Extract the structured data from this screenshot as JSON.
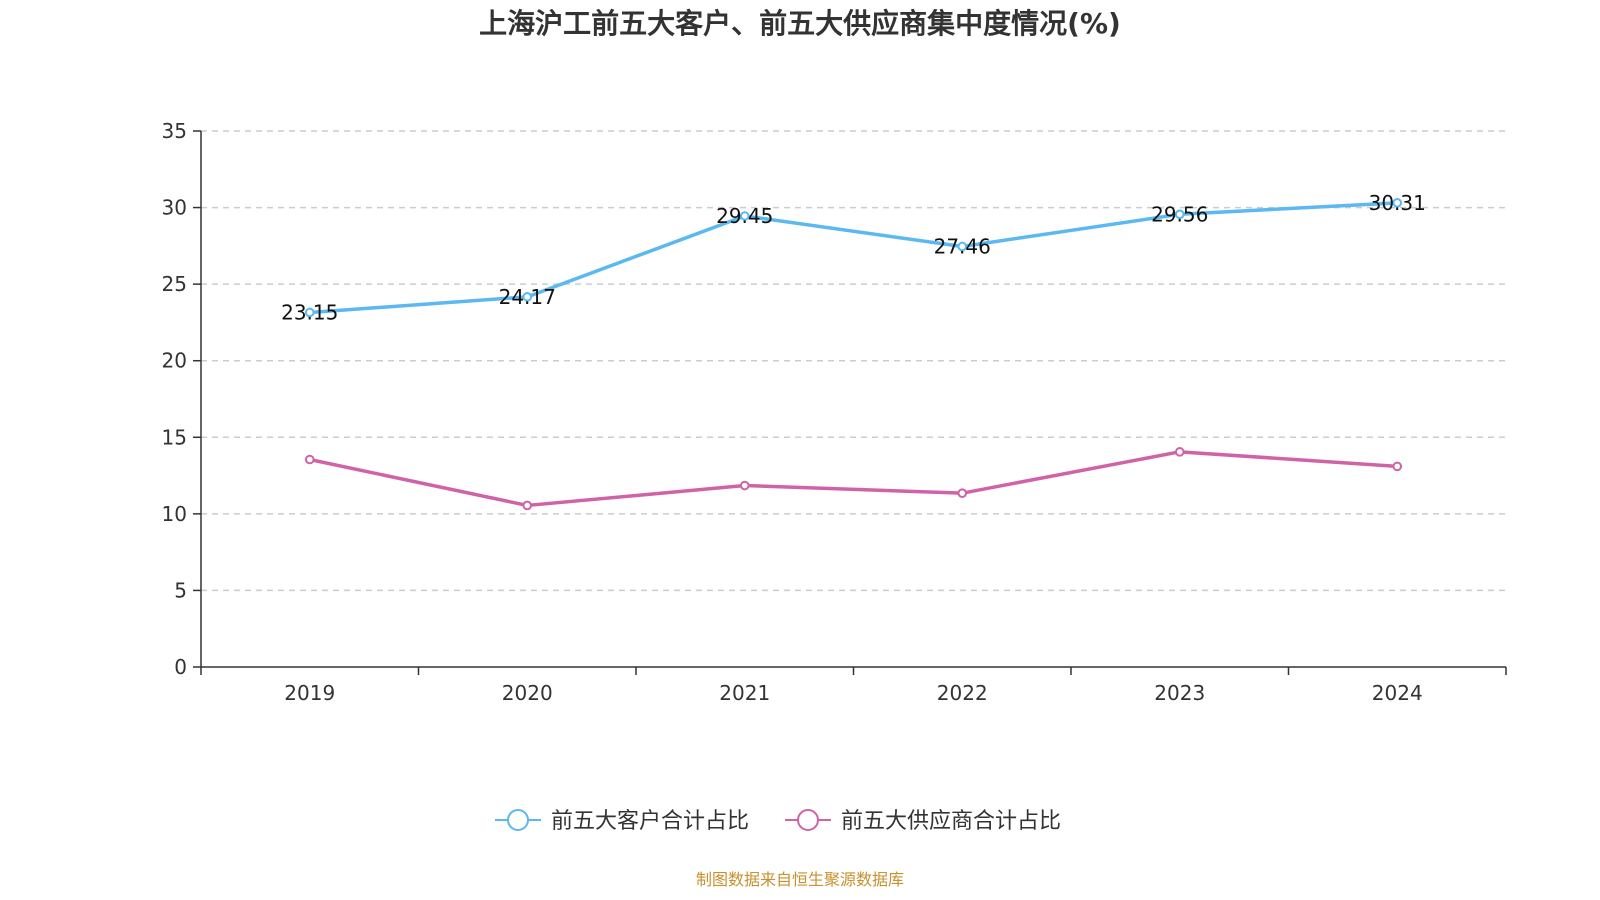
{
  "chart_data": {
    "type": "line",
    "title": "上海沪工前五大客户、前五大供应商集中度情况(%)",
    "xlabel": "",
    "ylabel": "",
    "categories": [
      "2019",
      "2020",
      "2021",
      "2022",
      "2023",
      "2024"
    ],
    "ylim": [
      0,
      35
    ],
    "yticks": [
      0,
      5,
      10,
      15,
      20,
      25,
      30,
      35
    ],
    "grid": true,
    "legend_position": "bottom",
    "series": [
      {
        "name": "前五大客户合计占比",
        "color": "#5bb8f0",
        "values": [
          23.15,
          24.17,
          29.45,
          27.46,
          29.56,
          30.31
        ],
        "labels": [
          "23.15",
          "24.17",
          "29.45",
          "27.46",
          "29.56",
          "30.31"
        ],
        "show_labels": true
      },
      {
        "name": "前五大供应商合计占比",
        "color": "#d063a8",
        "values": [
          13.55,
          10.55,
          11.85,
          11.35,
          14.05,
          13.1
        ],
        "show_labels": false
      }
    ],
    "source": "制图数据来自恒生聚源数据库"
  }
}
